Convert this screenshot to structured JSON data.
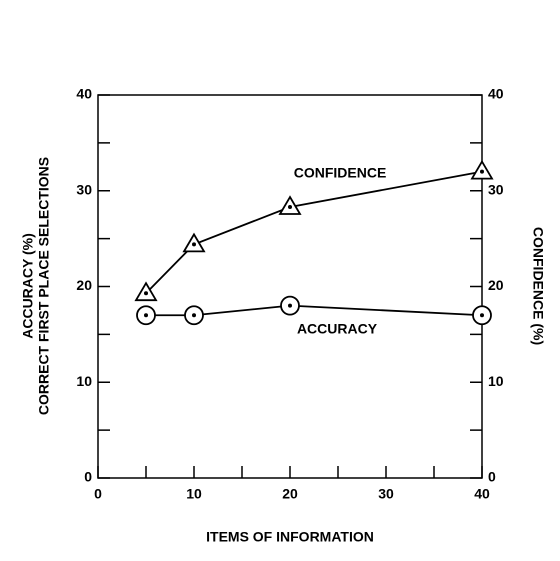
{
  "chart_data": {
    "type": "line",
    "xlabel": "ITEMS OF INFORMATION",
    "ylabel": [
      "ACCURACY (%)",
      "CORRECT FIRST PLACE SELECTIONS"
    ],
    "y2label": "CONFIDENCE (%)",
    "annotations": [
      "CONFIDENCE",
      "ACCURACY"
    ],
    "x": [
      5,
      10,
      20,
      40
    ],
    "series": [
      {
        "name": "ACCURACY",
        "color": "#000000",
        "marker": "circle",
        "axis": "y",
        "values": [
          17.0,
          17.0,
          18.0,
          17.0
        ]
      },
      {
        "name": "CONFIDENCE",
        "color": "#000000",
        "marker": "triangle",
        "axis": "y2",
        "values": [
          19.3,
          24.4,
          28.3,
          32.0
        ]
      }
    ],
    "xlim": [
      0,
      40
    ],
    "xticks": [
      0,
      10,
      20,
      30,
      40
    ],
    "xticks_minor": [
      5,
      15,
      25,
      35
    ],
    "ylim": [
      0,
      40
    ],
    "yticks": [
      0,
      10,
      20,
      30,
      40
    ],
    "yticks_minor": [
      5,
      15,
      25,
      35
    ],
    "y2lim": [
      0,
      40
    ],
    "y2ticks": [
      0,
      10,
      20,
      30,
      40
    ],
    "y2ticks_minor": [
      5,
      15,
      25,
      35
    ],
    "grid": false
  }
}
